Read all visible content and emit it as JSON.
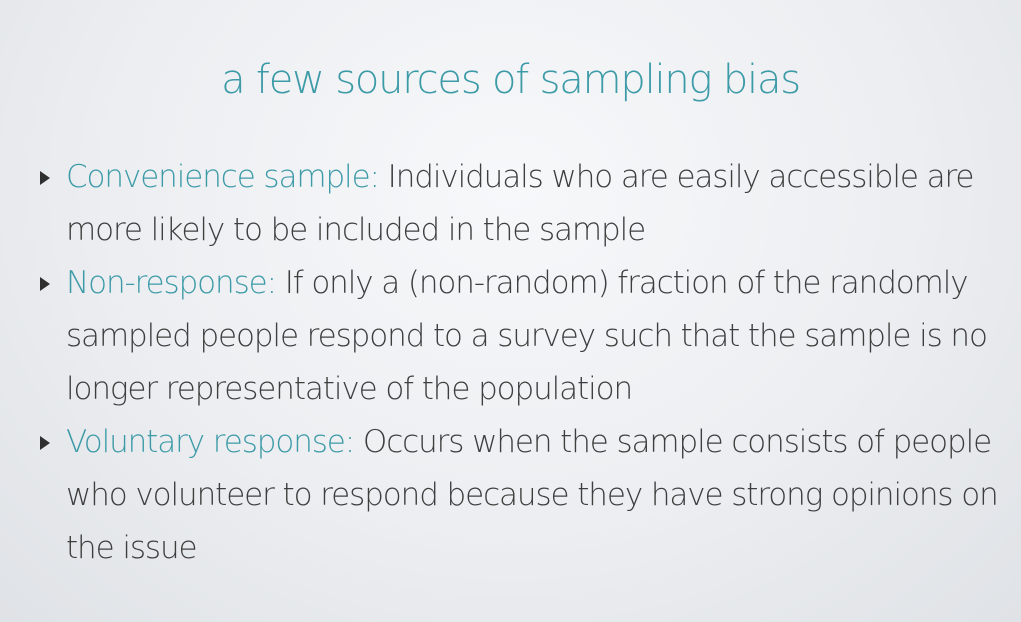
{
  "slide": {
    "title": "a few sources of sampling bias",
    "bullets": [
      {
        "term": "Convenience sample:",
        "text": "Individuals who are easily accessible are more likely to be included in the sample"
      },
      {
        "term": "Non-response:",
        "text": "If only a (non-random) fraction of the randomly sampled people respond to a survey such that the sample is no longer representative of the population"
      },
      {
        "term": "Voluntary response:",
        "text": "Occurs when the sample consists of people who volunteer to respond because they have strong opinions on the issue"
      }
    ]
  },
  "colors": {
    "accent": "#3d9ba8",
    "text": "#3e3e3e",
    "background": "#eceef1"
  }
}
